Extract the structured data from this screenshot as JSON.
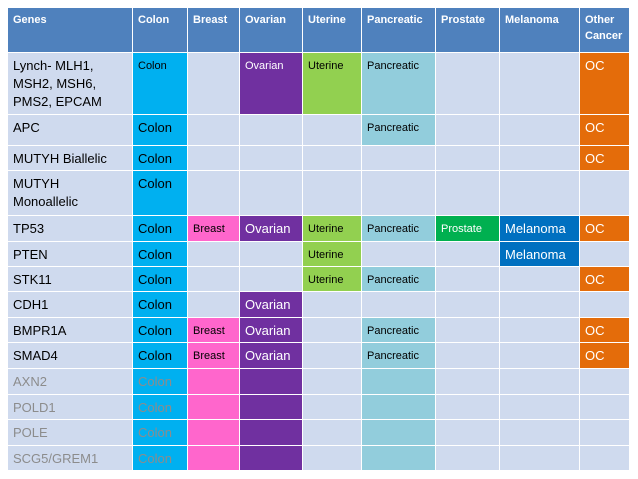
{
  "table": {
    "body_color": "#cfdaee",
    "header_color": "#4f81bd",
    "header_gene": "Genes",
    "columns": [
      {
        "name": "Colon",
        "color": "#00b0f0"
      },
      {
        "name": "Breast",
        "color": "#ff66cc"
      },
      {
        "name": "Ovarian",
        "color": "#7030a0"
      },
      {
        "name": "Uterine",
        "color": "#92d050"
      },
      {
        "name": "Pancreatic",
        "color": "#92cddc"
      },
      {
        "name": "Prostate",
        "color": "#00b050"
      },
      {
        "name": "Melanoma",
        "color": "#0070c0"
      },
      {
        "name": "Other Cancer",
        "color": "#e46c0a"
      }
    ],
    "rows": [
      {
        "gene": "Lynch- MLH1, MSH2, MSH6, PMS2, EPCAM",
        "cells": [
          "Colon",
          null,
          "Ovarian",
          "Uterine",
          "Pancreatic",
          null,
          null,
          "OC"
        ]
      },
      {
        "gene": "APC",
        "cells": [
          "Colon",
          null,
          null,
          null,
          "Pancreatic",
          null,
          null,
          "OC"
        ]
      },
      {
        "gene": "MUTYH Biallelic",
        "cells": [
          "Colon",
          null,
          null,
          null,
          null,
          null,
          null,
          "OC"
        ]
      },
      {
        "gene": "MUTYH Monoallelic",
        "cells": [
          "Colon",
          null,
          null,
          null,
          null,
          null,
          null,
          null
        ]
      },
      {
        "gene": "TP53",
        "cells": [
          "Colon",
          "Breast",
          "Ovarian",
          "Uterine",
          "Pancreatic",
          "Prostate",
          "Melanoma",
          "OC"
        ]
      },
      {
        "gene": "PTEN",
        "cells": [
          "Colon",
          null,
          null,
          "Uterine",
          null,
          null,
          "Melanoma",
          null
        ]
      },
      {
        "gene": "STK11",
        "cells": [
          "Colon",
          null,
          null,
          "Uterine",
          "Pancreatic",
          null,
          null,
          "OC"
        ]
      },
      {
        "gene": "CDH1",
        "cells": [
          "Colon",
          null,
          "Ovarian",
          null,
          null,
          null,
          null,
          null
        ]
      },
      {
        "gene": "BMPR1A",
        "cells": [
          "Colon",
          "Breast",
          "Ovarian",
          null,
          "Pancreatic",
          null,
          null,
          "OC"
        ]
      },
      {
        "gene": "SMAD4",
        "cells": [
          "Colon",
          "Breast",
          "Ovarian",
          null,
          "Pancreatic",
          null,
          null,
          "OC"
        ]
      },
      {
        "gene": "AXN2",
        "cells": [
          "Colon",
          null,
          null,
          null,
          null,
          null,
          null,
          null
        ],
        "faded": true,
        "filled": [
          0,
          1,
          2,
          4
        ]
      },
      {
        "gene": "POLD1",
        "cells": [
          "Colon",
          null,
          null,
          null,
          null,
          null,
          null,
          null
        ],
        "faded": true,
        "filled": [
          0,
          1,
          2,
          4
        ]
      },
      {
        "gene": "POLE",
        "cells": [
          "Colon",
          null,
          null,
          null,
          null,
          null,
          null,
          null
        ],
        "faded": true,
        "filled": [
          0,
          1,
          2,
          4
        ]
      },
      {
        "gene": "SCG5/GREM1",
        "cells": [
          "Colon",
          null,
          null,
          null,
          null,
          null,
          null,
          null
        ],
        "faded": true,
        "filled": [
          0,
          1,
          2,
          4
        ]
      }
    ]
  }
}
